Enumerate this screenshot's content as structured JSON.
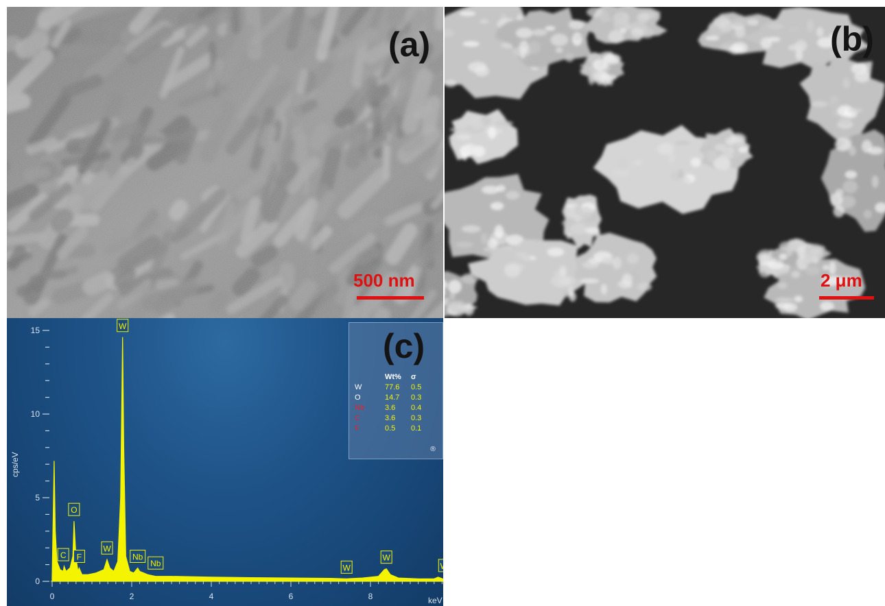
{
  "panel_a": {
    "label": "(a)",
    "scale_label": "500 nm"
  },
  "panel_b": {
    "label": "(b)",
    "scale_label": "2 μm"
  },
  "panel_c": {
    "label": "(c)",
    "y_axis_label": "cps/eV",
    "x_axis_label": "keV",
    "y_ticks": [
      "15",
      "10",
      "5",
      "0"
    ],
    "x_ticks": [
      "0",
      "2",
      "4",
      "6",
      "8"
    ],
    "table_headers": [
      "",
      "Wt%",
      "σ"
    ],
    "composition": [
      {
        "element": "W",
        "wt": "77.6",
        "sigma": "0.5",
        "color": "#ffffff"
      },
      {
        "element": "O",
        "wt": "14.7",
        "sigma": "0.3",
        "color": "#ffffff"
      },
      {
        "element": "Nb",
        "wt": "3.6",
        "sigma": "0.4",
        "color": "#e8202a"
      },
      {
        "element": "C",
        "wt": "3.6",
        "sigma": "0.3",
        "color": "#e8202a"
      },
      {
        "element": "F",
        "wt": "0.5",
        "sigma": "0.1",
        "color": "#e8202a"
      }
    ],
    "info_icon": "®",
    "peak_labels": [
      "W",
      "O",
      "C",
      "F",
      "W",
      "Nb",
      "Nb",
      "W",
      "W",
      "W"
    ],
    "chart_data": {
      "type": "area",
      "xlabel": "keV",
      "ylabel": "cps/eV",
      "xlim": [
        0,
        10
      ],
      "ylim": [
        0,
        15
      ],
      "x": [
        0.0,
        0.05,
        0.08,
        0.12,
        0.2,
        0.28,
        0.3,
        0.35,
        0.45,
        0.52,
        0.55,
        0.6,
        0.65,
        0.68,
        0.75,
        0.9,
        1.1,
        1.3,
        1.38,
        1.45,
        1.55,
        1.65,
        1.72,
        1.77,
        1.8,
        1.85,
        1.95,
        2.05,
        2.15,
        2.2,
        2.3,
        2.4,
        2.6,
        3.0,
        4.0,
        5.0,
        6.0,
        7.0,
        7.4,
        7.8,
        8.2,
        8.35,
        8.4,
        8.5,
        8.7,
        9.2,
        9.6,
        9.7,
        9.85,
        10.0
      ],
      "y": [
        0.2,
        7.2,
        3.0,
        1.2,
        0.7,
        0.6,
        0.9,
        0.6,
        0.8,
        1.5,
        3.6,
        1.4,
        0.6,
        0.8,
        0.4,
        0.4,
        0.5,
        0.7,
        1.3,
        0.8,
        0.6,
        1.2,
        5.0,
        14.6,
        8.0,
        1.5,
        0.6,
        0.5,
        0.8,
        0.6,
        0.5,
        0.4,
        0.3,
        0.3,
        0.25,
        0.22,
        0.2,
        0.18,
        0.15,
        0.2,
        0.3,
        0.7,
        0.75,
        0.4,
        0.2,
        0.15,
        0.15,
        0.25,
        0.12,
        0.1
      ],
      "color": "#f4f400"
    }
  }
}
